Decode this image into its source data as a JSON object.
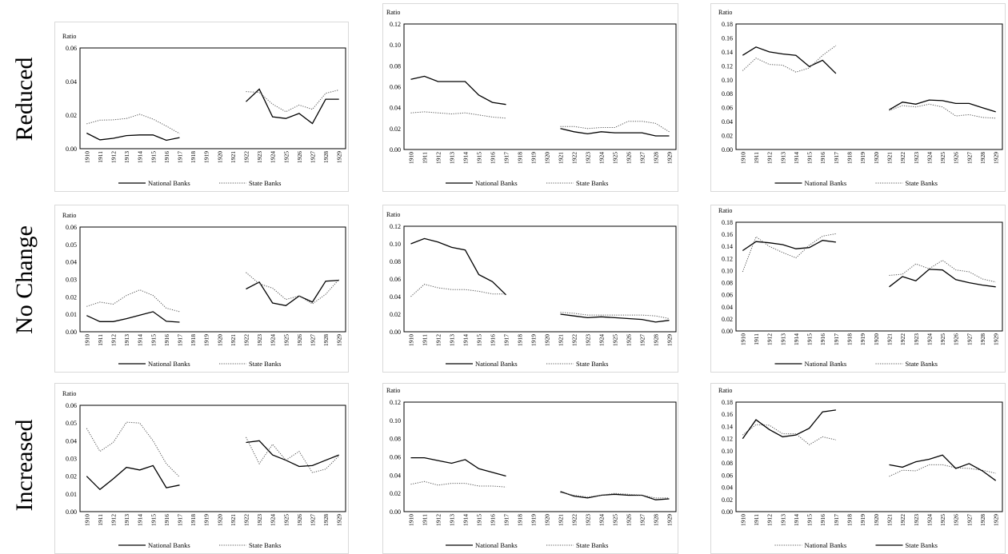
{
  "row_labels": [
    "Reduced",
    "No Change",
    "Increased"
  ],
  "chart_data": [
    {
      "type": "line",
      "title": "",
      "ylabel": "Ratio",
      "ylim": [
        0,
        0.06
      ],
      "ytick_step": 0.02,
      "ytick_decimals": 2,
      "x": [
        1910,
        1911,
        1912,
        1913,
        1914,
        1915,
        1916,
        1917,
        1918,
        1919,
        1920,
        1921,
        1922,
        1923,
        1924,
        1925,
        1926,
        1927,
        1928,
        1929
      ],
      "legend_position": "bottom",
      "series": [
        {
          "name": "National Banks",
          "style": "solid",
          "color": "#000000",
          "values": [
            0.0093,
            0.0053,
            0.0062,
            0.0078,
            0.0082,
            0.0082,
            0.005,
            0.0066,
            null,
            null,
            null,
            null,
            0.028,
            0.0355,
            0.019,
            0.018,
            0.021,
            0.015,
            0.0295,
            0.0295
          ]
        },
        {
          "name": "State Banks",
          "style": "dotted",
          "color": "#555555",
          "values": [
            0.0148,
            0.017,
            0.0172,
            0.018,
            0.0205,
            0.0176,
            0.0135,
            0.009,
            null,
            null,
            null,
            null,
            0.034,
            0.0335,
            0.0265,
            0.022,
            0.026,
            0.0235,
            0.033,
            0.035
          ]
        }
      ]
    },
    {
      "type": "line",
      "title": "",
      "ylabel": "Ratio",
      "ylim": [
        0,
        0.12
      ],
      "ytick_step": 0.02,
      "ytick_decimals": 2,
      "x": [
        1910,
        1911,
        1912,
        1913,
        1914,
        1915,
        1916,
        1917,
        1918,
        1919,
        1920,
        1921,
        1922,
        1923,
        1924,
        1925,
        1926,
        1927,
        1928,
        1929
      ],
      "legend_position": "bottom",
      "series": [
        {
          "name": "National Banks",
          "style": "solid",
          "color": "#000000",
          "values": [
            0.067,
            0.07,
            0.065,
            0.065,
            0.065,
            0.052,
            0.045,
            0.043,
            null,
            null,
            null,
            0.02,
            0.017,
            0.015,
            0.017,
            0.016,
            0.016,
            0.016,
            0.013,
            0.013
          ]
        },
        {
          "name": "State Banks",
          "style": "dotted",
          "color": "#555555",
          "values": [
            0.035,
            0.036,
            0.035,
            0.034,
            0.035,
            0.033,
            0.031,
            0.03,
            null,
            null,
            null,
            0.022,
            0.022,
            0.02,
            0.021,
            0.021,
            0.027,
            0.027,
            0.025,
            0.017
          ]
        }
      ]
    },
    {
      "type": "line",
      "title": "",
      "ylabel": "Ratio",
      "ylim": [
        0,
        0.18
      ],
      "ytick_step": 0.02,
      "ytick_decimals": 2,
      "x": [
        1910,
        1911,
        1912,
        1913,
        1914,
        1915,
        1916,
        1917,
        1918,
        1919,
        1920,
        1921,
        1922,
        1923,
        1924,
        1925,
        1926,
        1927,
        1928,
        1929
      ],
      "legend_position": "bottom",
      "series": [
        {
          "name": "National Banks",
          "style": "solid",
          "color": "#000000",
          "values": [
            0.135,
            0.147,
            0.14,
            0.137,
            0.135,
            0.119,
            0.128,
            0.109,
            null,
            null,
            null,
            0.057,
            0.068,
            0.065,
            0.071,
            0.07,
            0.066,
            0.066,
            0.06,
            0.054
          ]
        },
        {
          "name": "State Banks",
          "style": "dotted",
          "color": "#555555",
          "values": [
            0.113,
            0.131,
            0.122,
            0.121,
            0.111,
            0.117,
            0.135,
            0.149,
            null,
            null,
            null,
            0.056,
            0.063,
            0.061,
            0.065,
            0.061,
            0.048,
            0.05,
            0.046,
            0.045
          ]
        }
      ]
    },
    {
      "type": "line",
      "title": "",
      "ylabel": "Ratio",
      "ylim": [
        0,
        0.06
      ],
      "ytick_step": 0.01,
      "ytick_decimals": 2,
      "x": [
        1910,
        1911,
        1912,
        1913,
        1914,
        1915,
        1916,
        1917,
        1918,
        1919,
        1920,
        1921,
        1922,
        1923,
        1924,
        1925,
        1926,
        1927,
        1928,
        1929
      ],
      "legend_position": "bottom",
      "series": [
        {
          "name": "National Banks",
          "style": "solid",
          "color": "#000000",
          "values": [
            0.0093,
            0.0058,
            0.0058,
            0.0075,
            0.0095,
            0.0115,
            0.006,
            0.0055,
            null,
            null,
            null,
            null,
            0.0245,
            0.0285,
            0.0165,
            0.015,
            0.0205,
            0.017,
            0.029,
            0.0295
          ]
        },
        {
          "name": "State Banks",
          "style": "dotted",
          "color": "#555555",
          "values": [
            0.0145,
            0.017,
            0.0158,
            0.0208,
            0.024,
            0.0208,
            0.0135,
            0.0115,
            null,
            null,
            null,
            null,
            0.034,
            0.0275,
            0.025,
            0.0185,
            0.0205,
            0.016,
            0.0215,
            0.03
          ]
        }
      ]
    },
    {
      "type": "line",
      "title": "",
      "ylabel": "Ratio",
      "ylim": [
        0,
        0.12
      ],
      "ytick_step": 0.02,
      "ytick_decimals": 2,
      "x": [
        1910,
        1911,
        1912,
        1913,
        1914,
        1915,
        1916,
        1917,
        1918,
        1919,
        1920,
        1921,
        1922,
        1923,
        1924,
        1925,
        1926,
        1927,
        1928,
        1929
      ],
      "legend_position": "bottom",
      "series": [
        {
          "name": "National Banks",
          "style": "solid",
          "color": "#000000",
          "values": [
            0.1,
            0.106,
            0.102,
            0.096,
            0.093,
            0.065,
            0.057,
            0.042,
            null,
            null,
            null,
            0.02,
            0.018,
            0.016,
            0.017,
            0.016,
            0.015,
            0.014,
            0.011,
            0.013
          ]
        },
        {
          "name": "State Banks",
          "style": "dotted",
          "color": "#555555",
          "values": [
            0.04,
            0.054,
            0.05,
            0.048,
            0.048,
            0.046,
            0.043,
            0.043,
            null,
            null,
            null,
            0.022,
            0.021,
            0.019,
            0.019,
            0.019,
            0.019,
            0.019,
            0.018,
            0.015
          ]
        }
      ]
    },
    {
      "type": "line",
      "title": "",
      "ylabel": "Ratio",
      "ylim": [
        0,
        0.18
      ],
      "ytick_step": 0.02,
      "ytick_decimals": 2,
      "x": [
        1910,
        1911,
        1912,
        1913,
        1914,
        1915,
        1916,
        1917,
        1918,
        1919,
        1920,
        1921,
        1922,
        1923,
        1924,
        1925,
        1926,
        1927,
        1928,
        1929
      ],
      "legend_position": "bottom",
      "series": [
        {
          "name": "National Banks",
          "style": "solid",
          "color": "#000000",
          "values": [
            0.133,
            0.148,
            0.146,
            0.143,
            0.136,
            0.138,
            0.15,
            0.147,
            null,
            null,
            null,
            0.073,
            0.09,
            0.083,
            0.102,
            0.101,
            0.085,
            0.08,
            0.076,
            0.073
          ]
        },
        {
          "name": "State Banks",
          "style": "dotted",
          "color": "#555555",
          "values": [
            0.098,
            0.156,
            0.14,
            0.13,
            0.121,
            0.142,
            0.157,
            0.161,
            null,
            null,
            null,
            0.092,
            0.094,
            0.111,
            0.103,
            0.117,
            0.101,
            0.098,
            0.086,
            0.081
          ]
        }
      ]
    },
    {
      "type": "line",
      "title": "",
      "ylabel": "Ratio",
      "ylim": [
        0,
        0.06
      ],
      "ytick_step": 0.01,
      "ytick_decimals": 2,
      "x": [
        1910,
        1911,
        1912,
        1913,
        1914,
        1915,
        1916,
        1917,
        1918,
        1919,
        1920,
        1921,
        1922,
        1923,
        1924,
        1925,
        1926,
        1927,
        1928,
        1929
      ],
      "legend_position": "bottom",
      "series": [
        {
          "name": "National Banks",
          "style": "solid",
          "color": "#000000",
          "values": [
            0.02,
            0.0125,
            0.0185,
            0.025,
            0.0235,
            0.026,
            0.0135,
            0.015,
            null,
            null,
            null,
            null,
            0.039,
            0.04,
            0.032,
            0.029,
            0.0255,
            0.026,
            0.029,
            0.032
          ]
        },
        {
          "name": "State Banks",
          "style": "dotted",
          "color": "#555555",
          "values": [
            0.047,
            0.034,
            0.039,
            0.0505,
            0.05,
            0.04,
            0.027,
            0.0195,
            null,
            null,
            null,
            null,
            0.042,
            0.027,
            0.038,
            0.029,
            0.034,
            0.022,
            0.024,
            0.0315
          ]
        }
      ]
    },
    {
      "type": "line",
      "title": "",
      "ylabel": "Ratio",
      "ylim": [
        0,
        0.12
      ],
      "ytick_step": 0.02,
      "ytick_decimals": 2,
      "x": [
        1910,
        1911,
        1912,
        1913,
        1914,
        1915,
        1916,
        1917,
        1918,
        1919,
        1920,
        1921,
        1922,
        1923,
        1924,
        1925,
        1926,
        1927,
        1928,
        1929
      ],
      "legend_position": "bottom",
      "series": [
        {
          "name": "National Banks",
          "style": "solid",
          "color": "#000000",
          "values": [
            0.059,
            0.059,
            0.056,
            0.053,
            0.057,
            0.047,
            0.043,
            0.039,
            null,
            null,
            null,
            0.022,
            0.017,
            0.015,
            0.018,
            0.019,
            0.018,
            0.018,
            0.013,
            0.014
          ]
        },
        {
          "name": "State Banks",
          "style": "dotted",
          "color": "#555555",
          "values": [
            0.03,
            0.033,
            0.029,
            0.031,
            0.031,
            0.028,
            0.028,
            0.027,
            null,
            null,
            null,
            0.021,
            0.018,
            0.016,
            0.018,
            0.02,
            0.019,
            0.018,
            0.015,
            0.015
          ]
        }
      ]
    },
    {
      "type": "line",
      "title": "",
      "ylabel": "Ratio",
      "ylim": [
        0,
        0.18
      ],
      "ytick_step": 0.02,
      "ytick_decimals": 2,
      "x": [
        1910,
        1911,
        1912,
        1913,
        1914,
        1915,
        1916,
        1917,
        1918,
        1919,
        1920,
        1921,
        1922,
        1923,
        1924,
        1925,
        1926,
        1927,
        1928,
        1929
      ],
      "legend_position": "bottom",
      "series": [
        {
          "name": "National Banks",
          "style": "dotted",
          "color": "#555555",
          "values": [
            0.126,
            0.143,
            0.142,
            0.128,
            0.128,
            0.11,
            0.123,
            0.118,
            null,
            null,
            null,
            0.058,
            0.068,
            0.067,
            0.077,
            0.077,
            0.072,
            0.071,
            0.068,
            0.063
          ]
        },
        {
          "name": "State Banks",
          "style": "solid",
          "color": "#000000",
          "values": [
            0.12,
            0.151,
            0.135,
            0.123,
            0.126,
            0.137,
            0.164,
            0.167,
            null,
            null,
            null,
            0.077,
            0.073,
            0.082,
            0.086,
            0.093,
            0.071,
            0.079,
            0.067,
            0.051
          ]
        }
      ]
    }
  ]
}
